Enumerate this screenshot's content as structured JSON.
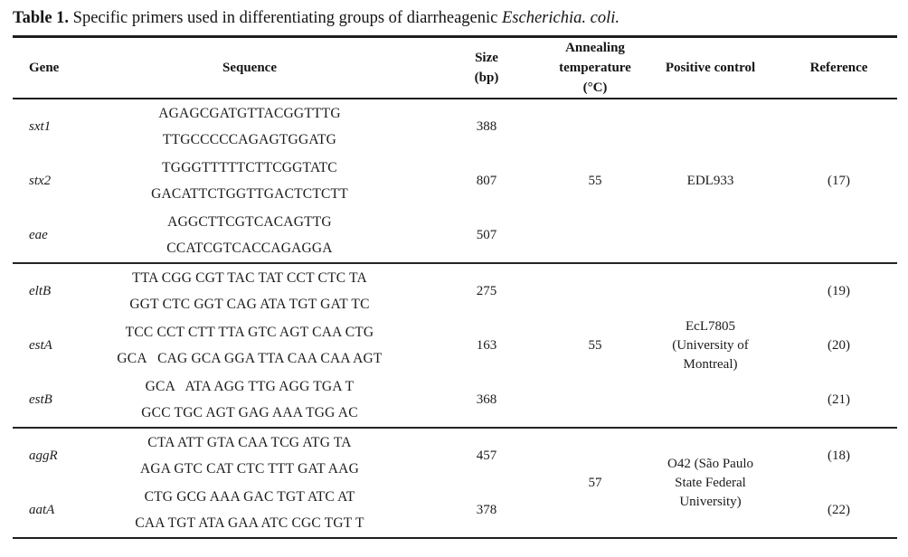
{
  "style": {
    "text_color": "#1b1b1b",
    "rule_color": "#1e1e1e",
    "background": "#ffffff"
  },
  "title": {
    "label": "Table 1.",
    "text": "Specific primers used in differentiating groups of diarrheagenic",
    "species": "Escherichia. coli."
  },
  "table": {
    "headers": {
      "gene": "Gene",
      "sequence": "Sequence",
      "size": "Size\n(bp)",
      "annealing": "Annealing\ntemperature\n(°C)",
      "positive": "Positive control",
      "reference": "Reference"
    },
    "rows": [
      {
        "gene": "sxt1",
        "sequence": "AGAGCGATGTTACGGTTTG\nTTGCCCCCAGAGTGGATG",
        "size": "388"
      },
      {
        "gene": "stx2",
        "sequence": "TGGGTTTTTCTTCGGTATC\nGACATTCTGGTTGACTCTCTT",
        "size": "807"
      },
      {
        "gene": "eae",
        "sequence": "AGGCTTCGTCACAGTTG\nCCATCGTCACCAGAGGA",
        "size": "507"
      },
      {
        "gene": "eltB",
        "sequence": "TTA CGG CGT TAC TAT CCT CTC TA\nGGT CTC GGT CAG ATA TGT GAT TC",
        "size": "275",
        "reference": "(19)"
      },
      {
        "gene": "estA",
        "sequence": "TCC CCT CTT TTA GTC AGT CAA CTG\nGCA   CAG GCA GGA TTA CAA CAA AGT",
        "size": "163",
        "reference": "(20)"
      },
      {
        "gene": "estB",
        "sequence": "GCA   ATA AGG TTG AGG TGA T\nGCC TGC AGT GAG AAA TGG AC",
        "size": "368",
        "reference": "(21)"
      },
      {
        "gene": "aggR",
        "sequence": "CTA ATT GTA CAA TCG ATG TA\nAGA GTC CAT CTC TTT GAT AAG",
        "size": "457",
        "reference": "(18)"
      },
      {
        "gene": "aatA",
        "sequence": "CTG GCG AAA GAC TGT ATC AT\nCAA TGT ATA GAA ATC CGC TGT T",
        "size": "378",
        "reference": "(22)"
      }
    ],
    "groups": [
      {
        "annealing": "55",
        "positive": "EDL933",
        "reference": "(17)"
      },
      {
        "annealing": "55",
        "positive": "EcL7805\n(University of\nMontreal)"
      },
      {
        "annealing": "57",
        "positive": "O42 (São Paulo\nState Federal\nUniversity)"
      }
    ]
  }
}
